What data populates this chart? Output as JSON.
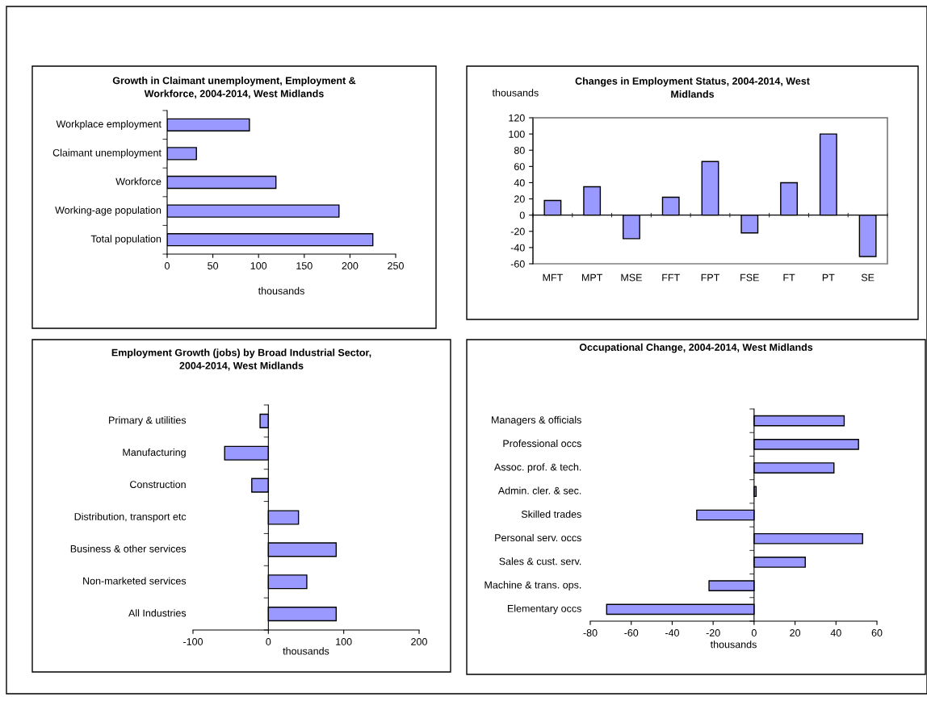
{
  "chart_data": [
    {
      "type": "bar",
      "orientation": "horizontal",
      "title": "Growth in Claimant unemployment, Employment &\nWorkforce, 2004-2014, West Midlands",
      "xlabel": "thousands",
      "categories": [
        "Workplace employment",
        "Claimant unemployment",
        "Workforce",
        "Working-age population",
        "Total population"
      ],
      "values": [
        90,
        32,
        119,
        188,
        225
      ],
      "color": "#9999ff",
      "xlim": [
        0,
        250
      ],
      "xticks": [
        0,
        50,
        100,
        150,
        200,
        250
      ]
    },
    {
      "type": "bar",
      "title": "Changes in Employment Status, 2004-2014, West\nMidlands",
      "ylabel": "thousands",
      "categories": [
        "MFT",
        "MPT",
        "MSE",
        "FFT",
        "FPT",
        "FSE",
        "FT",
        "PT",
        "SE"
      ],
      "values": [
        18,
        35,
        -29,
        22,
        66,
        -22,
        40,
        100,
        -51
      ],
      "color": "#9999ff",
      "ylim": [
        -60,
        120
      ],
      "yticks": [
        -60,
        -40,
        -20,
        0,
        20,
        40,
        60,
        80,
        100,
        120
      ]
    },
    {
      "type": "bar",
      "orientation": "horizontal",
      "title": "Employment Growth (jobs) by Broad Industrial Sector,\n2004-2014, West Midlands",
      "xlabel": "thousands",
      "categories": [
        "Primary & utilities",
        "Manufacturing",
        "Construction",
        "Distribution, transport etc",
        "Business & other services",
        "Non-marketed services",
        "All Industries"
      ],
      "values": [
        -11,
        -58,
        -22,
        40,
        90,
        51,
        90
      ],
      "color": "#9999ff",
      "xlim": [
        -100,
        200
      ],
      "xticks": [
        -100,
        0,
        100,
        200
      ]
    },
    {
      "type": "bar",
      "orientation": "horizontal",
      "title": "Occupational Change, 2004-2014, West Midlands",
      "xlabel": "thousands",
      "categories": [
        "Managers & officials",
        "Professional occs",
        "Assoc. prof. & tech.",
        "Admin. cler. & sec.",
        "Skilled trades",
        "Personal serv. occs",
        "Sales & cust. serv.",
        "Machine & trans. ops.",
        "Elementary occs"
      ],
      "values": [
        44,
        51,
        39,
        1,
        -28,
        53,
        25,
        -22,
        -72
      ],
      "color": "#9999ff",
      "xlim": [
        -80,
        60
      ],
      "xticks": [
        -80,
        -60,
        -40,
        -20,
        0,
        20,
        40,
        60
      ]
    }
  ]
}
